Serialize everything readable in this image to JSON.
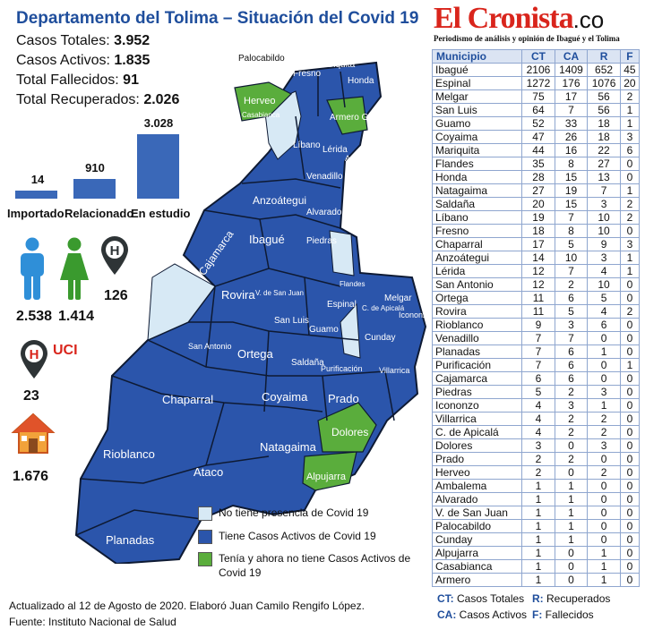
{
  "title": "Departamento del Tolima – Situación del Covid 19",
  "summary": [
    {
      "label": "Casos Totales: ",
      "value": "3.952"
    },
    {
      "label": "Casos Activos: ",
      "value": "1.835"
    },
    {
      "label": "Total Fallecidos: ",
      "value": "91"
    },
    {
      "label": "Total Recuperados: ",
      "value": "2.026"
    }
  ],
  "origin_chart": {
    "type": "bar",
    "categories": [
      "Importado",
      "Relacionado",
      "En estudio"
    ],
    "values": [
      14,
      910,
      3028
    ],
    "value_labels": [
      "14",
      "910",
      "3.028"
    ]
  },
  "icons": {
    "male": {
      "name": "male-person-icon",
      "value": "2.538",
      "color": "#2f8fd8"
    },
    "female": {
      "name": "female-person-icon",
      "value": "1.414",
      "color": "#3a9a2e"
    },
    "hospital": {
      "name": "hospital-pin-icon",
      "value": "126"
    },
    "uci": {
      "name": "uci-pin-icon",
      "label": "UCI",
      "value": "23"
    },
    "home": {
      "name": "house-icon",
      "value": "1.676"
    }
  },
  "colors": {
    "active": "#2b55ab",
    "none": "#d7e9f5",
    "recovered": "#5aad3c",
    "title": "#1f4e9c",
    "brand_red": "#d9251c"
  },
  "map_labels": [
    "Palocabildo",
    "Mariquita",
    "Fresno",
    "Honda",
    "Herveo",
    "Casabianca",
    "Armero G.",
    "Líbano",
    "Lérida",
    "Ambalema",
    "Venadillo",
    "Anzoátegui",
    "Alvarado",
    "Ibagué",
    "Cajamarca",
    "Piedras",
    "Rovira",
    "V. de San Juan",
    "San Luis",
    "Flandes",
    "Espinal",
    "C. de Apicalá",
    "Melgar",
    "Icononzo",
    "Cunday",
    "Guamo",
    "San Antonio",
    "Ortega",
    "Saldaña",
    "Purificación",
    "Villarrica",
    "Coyaima",
    "Prado",
    "Chaparral",
    "Dolores",
    "Natagaima",
    "Rioblanco",
    "Ataco",
    "Alpujarra",
    "Planadas"
  ],
  "legend": [
    {
      "text": "No tiene presencia de Covid 19",
      "color": "#d7e9f5"
    },
    {
      "text": "Tiene Casos Activos de Covid 19",
      "color": "#2b55ab"
    },
    {
      "text": "Tenía y ahora no tiene Casos Activos de Covid 19",
      "color": "#5aad3c"
    }
  ],
  "footer": {
    "line1": "Actualizado al 12 de Agosto de 2020. Elaboró Juan Camilo Rengifo López.",
    "line2": "Fuente: Instituto Nacional de Salud"
  },
  "brand": {
    "name": "El Cronista",
    "suffix": ".co",
    "tagline": "Periodismo de análisis y opinión de Ibagué y el Tolima"
  },
  "table": {
    "headers": [
      "Municipio",
      "CT",
      "CA",
      "R",
      "F"
    ],
    "rows": [
      [
        "Ibagué",
        "2106",
        "1409",
        "652",
        "45"
      ],
      [
        "Espinal",
        "1272",
        "176",
        "1076",
        "20"
      ],
      [
        "Melgar",
        "75",
        "17",
        "56",
        "2"
      ],
      [
        "San Luis",
        "64",
        "7",
        "56",
        "1"
      ],
      [
        "Guamo",
        "52",
        "33",
        "18",
        "1"
      ],
      [
        "Coyaima",
        "47",
        "26",
        "18",
        "3"
      ],
      [
        "Mariquita",
        "44",
        "16",
        "22",
        "6"
      ],
      [
        "Flandes",
        "35",
        "8",
        "27",
        "0"
      ],
      [
        "Honda",
        "28",
        "15",
        "13",
        "0"
      ],
      [
        "Natagaima",
        "27",
        "19",
        "7",
        "1"
      ],
      [
        "Saldaña",
        "20",
        "15",
        "3",
        "2"
      ],
      [
        "Líbano",
        "19",
        "7",
        "10",
        "2"
      ],
      [
        "Fresno",
        "18",
        "8",
        "10",
        "0"
      ],
      [
        "Chaparral",
        "17",
        "5",
        "9",
        "3"
      ],
      [
        "Anzoátegui",
        "14",
        "10",
        "3",
        "1"
      ],
      [
        "Lérida",
        "12",
        "7",
        "4",
        "1"
      ],
      [
        "San Antonio",
        "12",
        "2",
        "10",
        "0"
      ],
      [
        "Ortega",
        "11",
        "6",
        "5",
        "0"
      ],
      [
        "Rovira",
        "11",
        "5",
        "4",
        "2"
      ],
      [
        "Rioblanco",
        "9",
        "3",
        "6",
        "0"
      ],
      [
        "Venadillo",
        "7",
        "7",
        "0",
        "0"
      ],
      [
        "Planadas",
        "7",
        "6",
        "1",
        "0"
      ],
      [
        "Purificación",
        "7",
        "6",
        "0",
        "1"
      ],
      [
        "Cajamarca",
        "6",
        "6",
        "0",
        "0"
      ],
      [
        "Piedras",
        "5",
        "2",
        "3",
        "0"
      ],
      [
        "Icononzo",
        "4",
        "3",
        "1",
        "0"
      ],
      [
        "Villarrica",
        "4",
        "2",
        "2",
        "0"
      ],
      [
        "C. de Apicalá",
        "4",
        "2",
        "2",
        "0"
      ],
      [
        "Dolores",
        "3",
        "0",
        "3",
        "0"
      ],
      [
        "Prado",
        "2",
        "2",
        "0",
        "0"
      ],
      [
        "Herveo",
        "2",
        "0",
        "2",
        "0"
      ],
      [
        "Ambalema",
        "1",
        "1",
        "0",
        "0"
      ],
      [
        "Alvarado",
        "1",
        "1",
        "0",
        "0"
      ],
      [
        "V. de San Juan",
        "1",
        "1",
        "0",
        "0"
      ],
      [
        "Palocabildo",
        "1",
        "1",
        "0",
        "0"
      ],
      [
        "Cunday",
        "1",
        "1",
        "0",
        "0"
      ],
      [
        "Alpujarra",
        "1",
        "0",
        "1",
        "0"
      ],
      [
        "Casabianca",
        "1",
        "0",
        "1",
        "0"
      ],
      [
        "Armero",
        "1",
        "0",
        "1",
        "0"
      ]
    ]
  },
  "table_key": [
    {
      "k": "CT:",
      "v": " Casos Totales"
    },
    {
      "k": "R:",
      "v": " Recuperados"
    },
    {
      "k": "CA:",
      "v": " Casos Activos"
    },
    {
      "k": "F:",
      "v": " Fallecidos"
    }
  ]
}
